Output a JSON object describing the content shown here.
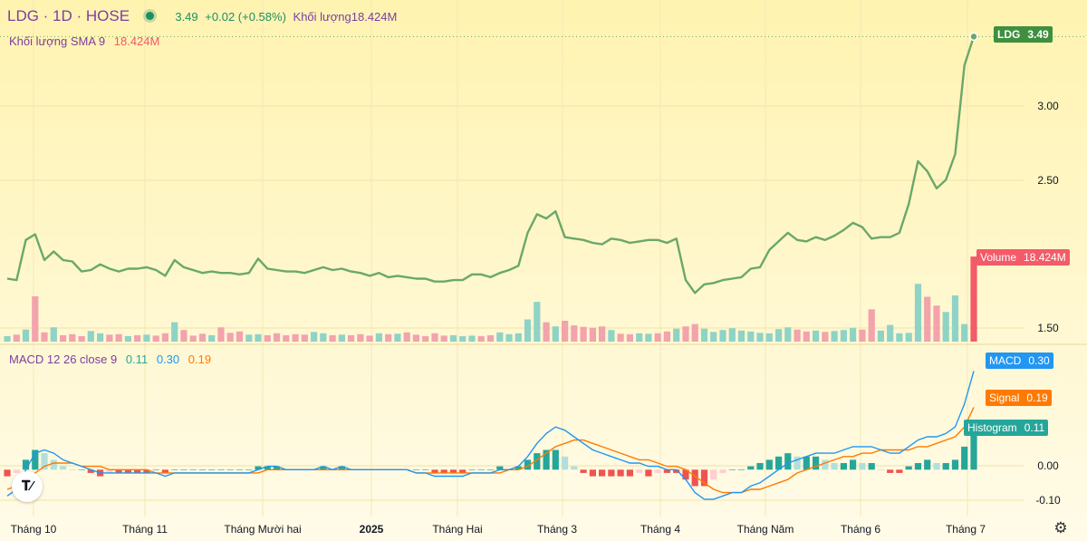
{
  "header": {
    "symbol": "LDG · 1D · HOSE",
    "price": "3.49",
    "change": "+0.02 (+0.58%)",
    "volume_label": "Khối lượng",
    "volume_value": "18.424M",
    "sma_label": "Khối lượng SMA 9",
    "sma_value": "18.424M"
  },
  "macd_legend": {
    "label": "MACD 12 26 close 9",
    "hist": "0.11",
    "macd": "0.30",
    "signal": "0.19"
  },
  "tags": {
    "ldg_name": "LDG",
    "ldg_price": "3.49",
    "volume_name": "Volume",
    "volume_value": "18.424M",
    "macd_name": "MACD",
    "macd_value": "0.30",
    "signal_name": "Signal",
    "signal_value": "0.19",
    "hist_name": "Histogram",
    "hist_value": "0.11"
  },
  "colors": {
    "price_line": "#6aa86a",
    "volume_up": "#8fd3c6",
    "volume_down": "#f2a3ac",
    "macd_line": "#2196f3",
    "signal_line": "#ff7a00",
    "hist_up_strong": "#26a69a",
    "hist_up_weak": "#b2dfdb",
    "hist_down_strong": "#ef5350",
    "hist_down_weak": "#ffcdd2",
    "volume_tag": "#f45b69",
    "ldg_tag": "#3f8f3f"
  },
  "chart_data": [
    {
      "type": "line",
      "title": "LDG · 1D · HOSE",
      "series": [
        {
          "name": "LDG",
          "values": [
            1.8,
            1.79,
            2.07,
            2.11,
            1.93,
            1.99,
            1.93,
            1.92,
            1.85,
            1.86,
            1.9,
            1.87,
            1.85,
            1.87,
            1.87,
            1.88,
            1.86,
            1.82,
            1.93,
            1.88,
            1.86,
            1.84,
            1.85,
            1.84,
            1.84,
            1.83,
            1.84,
            1.94,
            1.87,
            1.86,
            1.85,
            1.85,
            1.84,
            1.86,
            1.88,
            1.86,
            1.87,
            1.85,
            1.84,
            1.82,
            1.84,
            1.81,
            1.82,
            1.81,
            1.8,
            1.8,
            1.78,
            1.78,
            1.79,
            1.79,
            1.83,
            1.83,
            1.81,
            1.84,
            1.86,
            1.89,
            2.12,
            2.25,
            2.22,
            2.27,
            2.09,
            2.08,
            2.07,
            2.05,
            2.04,
            2.08,
            2.07,
            2.05,
            2.06,
            2.07,
            2.07,
            2.05,
            2.08,
            1.79,
            1.7,
            1.76,
            1.77,
            1.79,
            1.8,
            1.81,
            1.87,
            1.88,
            2.0,
            2.06,
            2.12,
            2.07,
            2.06,
            2.09,
            2.07,
            2.1,
            2.14,
            2.19,
            2.16,
            2.08,
            2.09,
            2.09,
            2.12,
            2.32,
            2.62,
            2.55,
            2.43,
            2.49,
            2.67,
            3.29,
            3.49
          ]
        }
      ],
      "ylim": [
        1.43,
        3.6
      ],
      "yticks": [
        "3.00",
        "2.50",
        "1.50"
      ],
      "xticks": [
        "Tháng 10",
        "Tháng 11",
        "Tháng Mười hai",
        "2025",
        "Tháng Hai",
        "Tháng 3",
        "Tháng 4",
        "Tháng Năm",
        "Tháng 6",
        "Tháng 7"
      ],
      "last_value": 3.49
    },
    {
      "type": "bar",
      "title": "Khối lượng",
      "series": [
        {
          "name": "Volume",
          "values": [
            1.2,
            1.5,
            2.6,
            9.8,
            2.0,
            3.1,
            1.4,
            1.6,
            1.2,
            2.3,
            1.8,
            1.5,
            1.6,
            1.2,
            1.4,
            1.5,
            1.3,
            1.8,
            4.2,
            2.5,
            1.3,
            1.7,
            1.4,
            3.1,
            1.9,
            2.2,
            1.5,
            1.6,
            1.4,
            1.8,
            1.4,
            1.6,
            1.5,
            2.1,
            1.8,
            1.4,
            1.5,
            1.4,
            1.6,
            1.3,
            1.8,
            1.6,
            1.7,
            2.0,
            1.5,
            1.2,
            1.8,
            1.3,
            1.4,
            1.2,
            1.3,
            1.2,
            1.4,
            2.0,
            1.6,
            1.8,
            4.8,
            8.6,
            4.2,
            3.3,
            4.5,
            3.5,
            3.2,
            3.0,
            3.3,
            2.5,
            1.7,
            1.6,
            1.8,
            1.7,
            1.8,
            2.2,
            2.8,
            3.3,
            3.8,
            2.8,
            2.1,
            2.5,
            2.9,
            2.4,
            2.2,
            1.9,
            1.8,
            2.7,
            3.1,
            2.6,
            2.2,
            2.4,
            2.1,
            2.3,
            2.5,
            3.0,
            2.6,
            7.0,
            2.4,
            3.6,
            1.8,
            1.9,
            12.5,
            9.7,
            7.8,
            6.4,
            10.0,
            3.8,
            18.4
          ]
        }
      ],
      "up": [
        true,
        false,
        true,
        false,
        false,
        true,
        false,
        false,
        false,
        true,
        true,
        false,
        false,
        true,
        false,
        true,
        false,
        false,
        true,
        false,
        false,
        false,
        true,
        false,
        false,
        false,
        true,
        true,
        false,
        false,
        false,
        false,
        false,
        true,
        true,
        false,
        true,
        false,
        false,
        false,
        true,
        false,
        true,
        false,
        false,
        false,
        false,
        false,
        true,
        true,
        true,
        false,
        false,
        true,
        true,
        true,
        true,
        true,
        false,
        true,
        false,
        false,
        false,
        false,
        false,
        true,
        false,
        false,
        true,
        true,
        false,
        false,
        true,
        false,
        false,
        true,
        true,
        true,
        true,
        true,
        true,
        true,
        true,
        true,
        true,
        false,
        false,
        true,
        false,
        true,
        true,
        true,
        false,
        false,
        true,
        true,
        true,
        true,
        true,
        false,
        false,
        true,
        true,
        true,
        true
      ],
      "last_value": "18.424M"
    },
    {
      "type": "line",
      "title": "MACD 12 26 close 9",
      "series": [
        {
          "name": "MACD",
          "values": [
            -0.08,
            -0.06,
            0.0,
            0.05,
            0.06,
            0.05,
            0.03,
            0.02,
            0.01,
            0.0,
            -0.01,
            -0.01,
            -0.01,
            -0.01,
            -0.01,
            -0.01,
            -0.01,
            -0.02,
            -0.01,
            -0.01,
            -0.01,
            -0.01,
            -0.01,
            -0.01,
            -0.01,
            -0.01,
            -0.01,
            0.0,
            0.01,
            0.01,
            0.0,
            0.0,
            0.0,
            0.0,
            0.01,
            0.0,
            0.01,
            0.0,
            0.0,
            0.0,
            0.0,
            0.0,
            0.0,
            0.0,
            -0.01,
            -0.01,
            -0.02,
            -0.02,
            -0.02,
            -0.02,
            -0.01,
            -0.01,
            -0.01,
            0.0,
            0.0,
            0.01,
            0.04,
            0.08,
            0.11,
            0.13,
            0.12,
            0.1,
            0.08,
            0.06,
            0.05,
            0.04,
            0.03,
            0.02,
            0.02,
            0.01,
            0.01,
            0.0,
            0.0,
            -0.03,
            -0.07,
            -0.09,
            -0.09,
            -0.08,
            -0.07,
            -0.07,
            -0.05,
            -0.04,
            -0.02,
            0.0,
            0.02,
            0.03,
            0.04,
            0.05,
            0.05,
            0.05,
            0.06,
            0.07,
            0.07,
            0.07,
            0.06,
            0.05,
            0.05,
            0.07,
            0.09,
            0.1,
            0.1,
            0.11,
            0.13,
            0.2,
            0.3
          ]
        },
        {
          "name": "Signal",
          "values": [
            -0.06,
            -0.05,
            -0.03,
            -0.01,
            0.01,
            0.02,
            0.02,
            0.02,
            0.01,
            0.01,
            0.01,
            0.0,
            0.0,
            0.0,
            0.0,
            0.0,
            -0.01,
            -0.01,
            -0.01,
            -0.01,
            -0.01,
            -0.01,
            -0.01,
            -0.01,
            -0.01,
            -0.01,
            -0.01,
            -0.01,
            0.0,
            0.0,
            0.0,
            0.0,
            0.0,
            0.0,
            0.0,
            0.0,
            0.0,
            0.0,
            0.0,
            0.0,
            0.0,
            0.0,
            0.0,
            0.0,
            -0.01,
            -0.01,
            -0.01,
            -0.01,
            -0.01,
            -0.01,
            -0.01,
            -0.01,
            -0.01,
            -0.01,
            0.0,
            0.0,
            0.01,
            0.03,
            0.05,
            0.07,
            0.08,
            0.09,
            0.09,
            0.08,
            0.07,
            0.06,
            0.05,
            0.04,
            0.03,
            0.03,
            0.02,
            0.01,
            0.01,
            0.0,
            -0.02,
            -0.04,
            -0.06,
            -0.07,
            -0.07,
            -0.07,
            -0.06,
            -0.06,
            -0.05,
            -0.04,
            -0.03,
            -0.01,
            0.0,
            0.01,
            0.02,
            0.03,
            0.04,
            0.04,
            0.05,
            0.05,
            0.06,
            0.06,
            0.06,
            0.06,
            0.07,
            0.07,
            0.08,
            0.09,
            0.1,
            0.13,
            0.19
          ]
        },
        {
          "name": "Histogram",
          "values": [
            -0.02,
            -0.01,
            0.03,
            0.06,
            0.05,
            0.03,
            0.01,
            0.0,
            0.0,
            -0.01,
            -0.02,
            -0.01,
            -0.01,
            -0.01,
            -0.01,
            -0.01,
            0.0,
            -0.01,
            0.0,
            0.0,
            0.0,
            0.0,
            0.0,
            0.0,
            0.0,
            0.0,
            0.0,
            0.01,
            0.01,
            0.01,
            0.0,
            0.0,
            0.0,
            0.0,
            0.01,
            0.0,
            0.01,
            0.0,
            0.0,
            0.0,
            0.0,
            0.0,
            0.0,
            0.0,
            0.0,
            0.0,
            -0.01,
            -0.01,
            -0.01,
            -0.01,
            0.0,
            0.0,
            0.0,
            0.01,
            0.0,
            0.01,
            0.03,
            0.05,
            0.06,
            0.06,
            0.04,
            0.01,
            -0.01,
            -0.02,
            -0.02,
            -0.02,
            -0.02,
            -0.02,
            -0.01,
            -0.02,
            -0.01,
            -0.01,
            -0.01,
            -0.03,
            -0.05,
            -0.05,
            -0.03,
            -0.01,
            0.0,
            0.0,
            0.01,
            0.02,
            0.03,
            0.04,
            0.05,
            0.04,
            0.04,
            0.04,
            0.03,
            0.02,
            0.02,
            0.03,
            0.02,
            0.02,
            0.0,
            -0.01,
            -0.01,
            0.01,
            0.02,
            0.03,
            0.02,
            0.02,
            0.03,
            0.07,
            0.11
          ]
        }
      ],
      "ylim": [
        -0.14,
        0.34
      ],
      "yticks": [
        "0.00",
        "-0.10"
      ]
    }
  ]
}
